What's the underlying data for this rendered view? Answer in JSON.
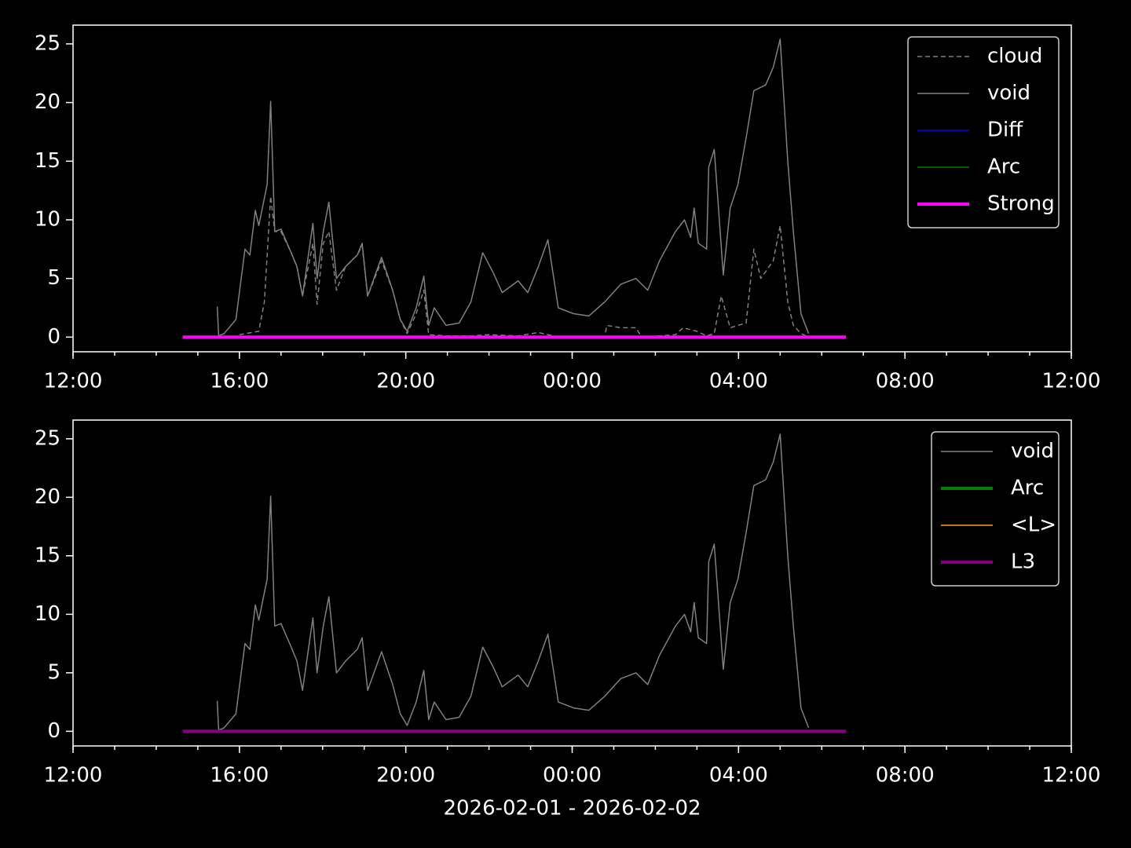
{
  "chart_data": [
    {
      "type": "line",
      "xlim": [
        "2026-02-01T12:00",
        "2026-02-02T12:00"
      ],
      "xticks": [
        {
          "value": "2026-02-01T12:00",
          "label": "12:00"
        },
        {
          "value": "2026-02-01T16:00",
          "label": "16:00"
        },
        {
          "value": "2026-02-01T20:00",
          "label": "20:00"
        },
        {
          "value": "2026-02-02T00:00",
          "label": "00:00"
        },
        {
          "value": "2026-02-02T04:00",
          "label": "04:00"
        },
        {
          "value": "2026-02-02T08:00",
          "label": "08:00"
        },
        {
          "value": "2026-02-02T12:00",
          "label": "12:00"
        }
      ],
      "ylim": [
        -1.25,
        26.6
      ],
      "yticks": [
        0,
        5,
        10,
        15,
        20,
        25
      ],
      "legend": "upper right",
      "series": [
        {
          "name": "cloud",
          "color": "#808080",
          "linestyle": "dashed",
          "linewidth": 1.5,
          "x": [
            "2026-02-01T16:00",
            "2026-02-01T16:28",
            "2026-02-01T16:36",
            "2026-02-01T16:45",
            "2026-02-01T16:51",
            "2026-02-01T17:00",
            "2026-02-01T17:14",
            "2026-02-01T17:23",
            "2026-02-01T17:31",
            "2026-02-01T17:46",
            "2026-02-01T17:52",
            "2026-02-01T18:01",
            "2026-02-01T18:09",
            "2026-02-01T18:20",
            "2026-02-01T18:33",
            "2026-02-01T18:50",
            "2026-02-01T18:57",
            "2026-02-01T19:05",
            "2026-02-01T19:25",
            "2026-02-01T19:41",
            "2026-02-01T19:52",
            "2026-02-01T20:02",
            "2026-02-01T20:15",
            "2026-02-01T20:26",
            "2026-02-01T20:33",
            "2026-02-01T21:00",
            "2026-02-01T21:34",
            "2026-02-01T22:00",
            "2026-02-01T22:42",
            "2026-02-01T23:11",
            "2026-02-01T23:40",
            "2026-02-02T00:47",
            "2026-02-02T00:50",
            "2026-02-02T01:10",
            "2026-02-02T01:32",
            "2026-02-02T01:40",
            "2026-02-02T02:29",
            "2026-02-02T02:40",
            "2026-02-02T03:00",
            "2026-02-02T03:14",
            "2026-02-02T03:25",
            "2026-02-02T03:35",
            "2026-02-02T03:48",
            "2026-02-02T04:11",
            "2026-02-02T04:22",
            "2026-02-02T04:32",
            "2026-02-02T04:50",
            "2026-02-02T05:00",
            "2026-02-02T05:11",
            "2026-02-02T05:19",
            "2026-02-02T05:30",
            "2026-02-02T05:41"
          ],
          "values": [
            0.2,
            0.5,
            3,
            12,
            9,
            9,
            7.3,
            6,
            3.5,
            8,
            2.8,
            8,
            9,
            4,
            6,
            7,
            7.8,
            3.5,
            6.5,
            4,
            1.5,
            0.3,
            2,
            4,
            0.2,
            0.1,
            0.1,
            0.2,
            0.1,
            0.4,
            0,
            0,
            1,
            0.8,
            0.8,
            0,
            0.2,
            0.8,
            0.5,
            0.1,
            0.3,
            3.5,
            0.8,
            1.2,
            7.5,
            5,
            6.5,
            9.5,
            3,
            1,
            0.3,
            0
          ]
        },
        {
          "name": "void",
          "color": "#808080",
          "linewidth": 1.5,
          "x": [
            "2026-02-01T15:28",
            "2026-02-01T15:30",
            "2026-02-01T15:38",
            "2026-02-01T15:55",
            "2026-02-01T16:08",
            "2026-02-01T16:15",
            "2026-02-01T16:23",
            "2026-02-01T16:28",
            "2026-02-01T16:40",
            "2026-02-01T16:45",
            "2026-02-01T16:51",
            "2026-02-01T17:00",
            "2026-02-01T17:14",
            "2026-02-01T17:23",
            "2026-02-01T17:31",
            "2026-02-01T17:46",
            "2026-02-01T17:52",
            "2026-02-01T18:01",
            "2026-02-01T18:09",
            "2026-02-01T18:20",
            "2026-02-01T18:33",
            "2026-02-01T18:50",
            "2026-02-01T18:57",
            "2026-02-01T19:05",
            "2026-02-01T19:25",
            "2026-02-01T19:41",
            "2026-02-01T19:52",
            "2026-02-01T20:02",
            "2026-02-01T20:15",
            "2026-02-01T20:26",
            "2026-02-01T20:33",
            "2026-02-01T20:41",
            "2026-02-01T20:58",
            "2026-02-01T21:17",
            "2026-02-01T21:34",
            "2026-02-01T21:51",
            "2026-02-01T22:06",
            "2026-02-01T22:19",
            "2026-02-01T22:42",
            "2026-02-01T22:56",
            "2026-02-01T23:11",
            "2026-02-01T23:25",
            "2026-02-01T23:40",
            "2026-02-02T00:02",
            "2026-02-02T00:24",
            "2026-02-02T00:47",
            "2026-02-02T01:10",
            "2026-02-02T01:32",
            "2026-02-02T01:49",
            "2026-02-02T02:06",
            "2026-02-02T02:29",
            "2026-02-02T02:42",
            "2026-02-02T02:51",
            "2026-02-02T02:56",
            "2026-02-02T03:02",
            "2026-02-02T03:14",
            "2026-02-02T03:17",
            "2026-02-02T03:25",
            "2026-02-02T03:38",
            "2026-02-02T03:48",
            "2026-02-02T03:59",
            "2026-02-02T04:11",
            "2026-02-02T04:22",
            "2026-02-02T04:39",
            "2026-02-02T04:50",
            "2026-02-02T05:00",
            "2026-02-02T05:11",
            "2026-02-02T05:19",
            "2026-02-02T05:30",
            "2026-02-02T05:41"
          ],
          "values": [
            2.6,
            0.1,
            0.3,
            1.5,
            7.5,
            7,
            10.8,
            9.5,
            13,
            20.1,
            9,
            9.2,
            7.3,
            6,
            3.5,
            9.7,
            5,
            9,
            11.5,
            5,
            6,
            7,
            8,
            3.5,
            6.8,
            4,
            1.5,
            0.5,
            2.5,
            5.2,
            1,
            2.5,
            1,
            1.2,
            3,
            7.2,
            5.5,
            3.8,
            4.8,
            3.8,
            6,
            8.3,
            2.5,
            2,
            1.8,
            3,
            4.5,
            5,
            4,
            6.5,
            9,
            10,
            8.5,
            11,
            8,
            7.5,
            14.5,
            16,
            5.3,
            11,
            13,
            17,
            21,
            21.5,
            23,
            25.4,
            15,
            9,
            2,
            0.3
          ]
        },
        {
          "name": "Diff",
          "color": "#0000ff",
          "linewidth": 1.5,
          "x": [
            "2026-02-01T14:38",
            "2026-02-02T06:35"
          ],
          "values": [
            0,
            0
          ]
        },
        {
          "name": "Arc",
          "color": "#008000",
          "linewidth": 1.5,
          "x": [
            "2026-02-01T14:38",
            "2026-02-02T06:35"
          ],
          "values": [
            0,
            0
          ]
        },
        {
          "name": "Strong",
          "color": "#ff00ff",
          "linewidth": 4,
          "x": [
            "2026-02-01T14:38",
            "2026-02-02T06:35"
          ],
          "values": [
            0,
            0
          ]
        }
      ]
    },
    {
      "type": "line",
      "xlabel": "2026-02-01 - 2026-02-02",
      "xlim": [
        "2026-02-01T12:00",
        "2026-02-02T12:00"
      ],
      "xticks": [
        {
          "value": "2026-02-01T12:00",
          "label": "12:00"
        },
        {
          "value": "2026-02-01T16:00",
          "label": "16:00"
        },
        {
          "value": "2026-02-01T20:00",
          "label": "20:00"
        },
        {
          "value": "2026-02-02T00:00",
          "label": "00:00"
        },
        {
          "value": "2026-02-02T04:00",
          "label": "04:00"
        },
        {
          "value": "2026-02-02T08:00",
          "label": "08:00"
        },
        {
          "value": "2026-02-02T12:00",
          "label": "12:00"
        }
      ],
      "ylim": [
        -1.25,
        26.6
      ],
      "yticks": [
        0,
        5,
        10,
        15,
        20,
        25
      ],
      "legend": "upper right",
      "series": [
        {
          "name": "void",
          "color": "#808080",
          "linewidth": 1.5,
          "x": [
            "2026-02-01T15:28",
            "2026-02-01T15:30",
            "2026-02-01T15:38",
            "2026-02-01T15:55",
            "2026-02-01T16:08",
            "2026-02-01T16:15",
            "2026-02-01T16:23",
            "2026-02-01T16:28",
            "2026-02-01T16:40",
            "2026-02-01T16:45",
            "2026-02-01T16:51",
            "2026-02-01T17:00",
            "2026-02-01T17:14",
            "2026-02-01T17:23",
            "2026-02-01T17:31",
            "2026-02-01T17:46",
            "2026-02-01T17:52",
            "2026-02-01T18:01",
            "2026-02-01T18:09",
            "2026-02-01T18:20",
            "2026-02-01T18:33",
            "2026-02-01T18:50",
            "2026-02-01T18:57",
            "2026-02-01T19:05",
            "2026-02-01T19:25",
            "2026-02-01T19:41",
            "2026-02-01T19:52",
            "2026-02-01T20:02",
            "2026-02-01T20:15",
            "2026-02-01T20:26",
            "2026-02-01T20:33",
            "2026-02-01T20:41",
            "2026-02-01T20:58",
            "2026-02-01T21:17",
            "2026-02-01T21:34",
            "2026-02-01T21:51",
            "2026-02-01T22:06",
            "2026-02-01T22:19",
            "2026-02-01T22:42",
            "2026-02-01T22:56",
            "2026-02-01T23:11",
            "2026-02-01T23:25",
            "2026-02-01T23:40",
            "2026-02-02T00:02",
            "2026-02-02T00:24",
            "2026-02-02T00:47",
            "2026-02-02T01:10",
            "2026-02-02T01:32",
            "2026-02-02T01:49",
            "2026-02-02T02:06",
            "2026-02-02T02:29",
            "2026-02-02T02:42",
            "2026-02-02T02:51",
            "2026-02-02T02:56",
            "2026-02-02T03:02",
            "2026-02-02T03:14",
            "2026-02-02T03:17",
            "2026-02-02T03:25",
            "2026-02-02T03:38",
            "2026-02-02T03:48",
            "2026-02-02T03:59",
            "2026-02-02T04:11",
            "2026-02-02T04:22",
            "2026-02-02T04:39",
            "2026-02-02T04:50",
            "2026-02-02T05:00",
            "2026-02-02T05:11",
            "2026-02-02T05:19",
            "2026-02-02T05:30",
            "2026-02-02T05:41"
          ],
          "values": [
            2.6,
            0.1,
            0.3,
            1.5,
            7.5,
            7,
            10.8,
            9.5,
            13,
            20.1,
            9,
            9.2,
            7.3,
            6,
            3.5,
            9.7,
            5,
            9,
            11.5,
            5,
            6,
            7,
            8,
            3.5,
            6.8,
            4,
            1.5,
            0.5,
            2.5,
            5.2,
            1,
            2.5,
            1,
            1.2,
            3,
            7.2,
            5.5,
            3.8,
            4.8,
            3.8,
            6,
            8.3,
            2.5,
            2,
            1.8,
            3,
            4.5,
            5,
            4,
            6.5,
            9,
            10,
            8.5,
            11,
            8,
            7.5,
            14.5,
            16,
            5.3,
            11,
            13,
            17,
            21,
            21.5,
            23,
            25.4,
            15,
            9,
            2,
            0.3
          ]
        },
        {
          "name": "Arc",
          "color": "#008000",
          "linewidth": 4,
          "x": [
            "2026-02-01T14:38",
            "2026-02-02T06:35"
          ],
          "values": [
            0,
            0
          ]
        },
        {
          "name": "<L>",
          "color": "#ffa500",
          "linewidth": 1.5,
          "x": [
            "2026-02-01T14:38",
            "2026-02-02T06:35"
          ],
          "values": [
            0,
            0
          ]
        },
        {
          "name": "L3",
          "color": "#800080",
          "linewidth": 4,
          "x": [
            "2026-02-01T14:38",
            "2026-02-02T06:35"
          ],
          "values": [
            0,
            0
          ]
        }
      ]
    }
  ]
}
